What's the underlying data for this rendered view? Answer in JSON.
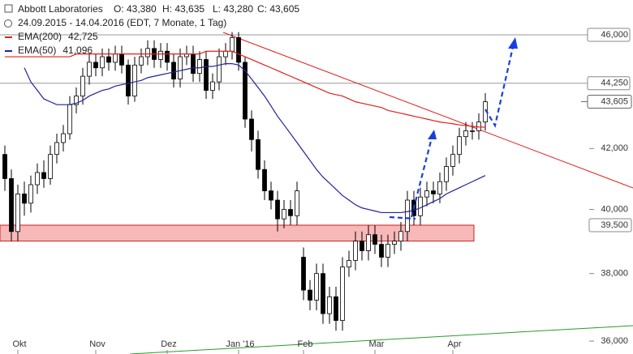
{
  "chart_data": {
    "type": "candlestick",
    "title": "Abbott Laboratories",
    "ohlc": [
      "O: 43,380",
      "H: 43,635",
      "L: 43,280",
      "C: 43,605"
    ],
    "subtitle": "24.09.2015 - 14.04.2016 (EDT, 7 Monate, 1 Tag)",
    "log": true,
    "ylim": [
      35.63,
      47.3
    ],
    "yticks": [
      {
        "value": 36,
        "label": "36,000"
      },
      {
        "value": 38,
        "label": "38,000"
      },
      {
        "value": 40,
        "label": "40,000"
      },
      {
        "value": 42,
        "label": "42,000"
      }
    ],
    "levels": [
      {
        "value": 46,
        "label": "46,000"
      },
      {
        "value": 44.25,
        "label": "44,250"
      },
      {
        "value": 39.5,
        "label": "39,500"
      }
    ],
    "last_price": {
      "value": 43.605,
      "label": "43,605"
    },
    "zone": [
      39.0,
      39.5
    ],
    "zone_color": "#f7b8b8",
    "up_color": "#ffffff",
    "down_color": "#000000",
    "categories": [
      null,
      null,
      "Okt",
      null,
      null,
      null,
      null,
      null,
      null,
      null,
      null,
      null,
      null,
      null,
      "Nov",
      null,
      null,
      null,
      null,
      null,
      null,
      null,
      null,
      null,
      null,
      "Dez",
      null,
      null,
      null,
      null,
      null,
      null,
      null,
      null,
      null,
      null,
      "Jan '16",
      null,
      null,
      null,
      null,
      null,
      null,
      null,
      null,
      null,
      "Feb",
      null,
      null,
      null,
      null,
      null,
      null,
      null,
      null,
      null,
      null,
      "Mar",
      null,
      null,
      null,
      null,
      null,
      null,
      null,
      null,
      null,
      null,
      null,
      "Apr",
      null,
      null,
      null,
      null,
      null
    ],
    "candles": {
      "open": [
        41.8,
        41.0,
        39.3,
        40.5,
        40.2,
        40.8,
        41.2,
        41.0,
        41.8,
        42.2,
        42.5,
        43.5,
        43.8,
        44.5,
        45.0,
        44.8,
        45.2,
        45.0,
        45.3,
        44.9,
        43.8,
        44.9,
        45.2,
        45.5,
        45.1,
        45.4,
        45.0,
        44.4,
        45.2,
        45.3,
        44.6,
        45.1,
        44.0,
        44.3,
        45.2,
        45.4,
        45.9,
        45.0,
        43.0,
        42.3,
        41.3,
        40.6,
        40.3,
        39.7,
        40.0,
        39.8,
        38.5,
        37.5,
        37.2,
        38.0,
        36.8,
        37.3,
        36.6,
        38.2,
        38.4,
        39.0,
        38.7,
        39.2,
        38.9,
        38.5,
        38.9,
        39.0,
        39.3,
        40.3,
        39.8,
        40.4,
        40.6,
        40.5,
        40.9,
        41.4,
        41.8,
        42.4,
        42.6,
        42.6,
        42.9
      ],
      "high": [
        42.1,
        41.3,
        40.8,
        40.9,
        41.1,
        41.5,
        41.6,
        42.1,
        42.5,
        42.8,
        43.8,
        44.1,
        44.8,
        45.3,
        45.3,
        45.5,
        45.5,
        45.6,
        45.6,
        45.1,
        45.2,
        45.5,
        45.8,
        45.8,
        45.7,
        45.7,
        45.3,
        45.5,
        45.6,
        45.6,
        45.4,
        45.4,
        44.6,
        45.5,
        45.7,
        46.1,
        46.1,
        45.2,
        43.3,
        42.6,
        41.6,
        40.9,
        40.6,
        40.3,
        40.3,
        40.9,
        38.8,
        37.8,
        38.3,
        38.3,
        37.6,
        37.6,
        38.5,
        38.7,
        39.3,
        39.3,
        39.5,
        39.5,
        39.2,
        39.2,
        39.3,
        39.6,
        40.6,
        40.6,
        40.7,
        40.9,
        40.9,
        41.2,
        41.7,
        42.1,
        42.7,
        42.9,
        42.9,
        43.2,
        43.9
      ],
      "low": [
        40.6,
        39.0,
        39.0,
        39.8,
        39.9,
        40.5,
        40.7,
        40.8,
        41.5,
        41.9,
        42.3,
        43.2,
        43.5,
        44.2,
        44.5,
        44.5,
        44.7,
        44.7,
        44.6,
        43.5,
        43.6,
        44.6,
        44.9,
        44.8,
        44.8,
        44.7,
        44.1,
        44.1,
        44.9,
        44.3,
        44.3,
        43.7,
        43.7,
        44.0,
        44.9,
        45.1,
        44.7,
        42.7,
        41.9,
        41.0,
        40.3,
        40.0,
        39.3,
        39.4,
        39.5,
        39.5,
        37.2,
        36.9,
        36.9,
        36.5,
        36.5,
        36.3,
        36.3,
        37.9,
        38.1,
        38.4,
        38.4,
        38.6,
        38.2,
        38.2,
        38.6,
        38.7,
        39.0,
        39.5,
        39.5,
        40.1,
        40.2,
        40.2,
        40.6,
        41.1,
        41.5,
        42.1,
        42.3,
        42.3,
        42.6
      ],
      "close": [
        41.0,
        39.3,
        40.5,
        40.2,
        40.8,
        41.2,
        41.0,
        41.8,
        42.2,
        42.5,
        43.5,
        43.8,
        44.5,
        45.0,
        44.8,
        45.2,
        45.0,
        45.3,
        44.9,
        43.8,
        44.9,
        45.2,
        45.5,
        45.1,
        45.4,
        45.0,
        44.4,
        45.2,
        45.3,
        44.6,
        45.1,
        44.0,
        44.3,
        45.2,
        45.4,
        45.9,
        45.0,
        43.0,
        42.3,
        41.3,
        40.6,
        40.3,
        39.7,
        40.0,
        39.8,
        40.6,
        37.5,
        37.2,
        38.0,
        36.8,
        37.3,
        36.6,
        38.2,
        38.4,
        39.0,
        38.7,
        39.2,
        38.9,
        38.5,
        38.9,
        39.0,
        39.3,
        40.3,
        39.8,
        40.4,
        40.6,
        40.5,
        40.9,
        41.4,
        41.8,
        42.4,
        42.6,
        42.6,
        42.9,
        43.6
      ]
    },
    "series": [
      {
        "name": "EMA(200)",
        "color": "#e0201b",
        "last_label": "42,725",
        "values": [
          45.2,
          45.2,
          45.2,
          45.2,
          45.2,
          45.2,
          45.2,
          45.2,
          45.2,
          45.2,
          45.2,
          45.3,
          45.3,
          45.3,
          45.3,
          45.3,
          45.3,
          45.3,
          45.3,
          45.3,
          45.3,
          45.3,
          45.3,
          45.3,
          45.3,
          45.3,
          45.3,
          45.3,
          45.3,
          45.3,
          45.3,
          45.4,
          45.4,
          45.4,
          45.4,
          45.4,
          45.3,
          45.2,
          45.1,
          45.0,
          44.9,
          44.8,
          44.7,
          44.6,
          44.5,
          44.4,
          44.3,
          44.2,
          44.1,
          44.0,
          43.9,
          43.85,
          43.8,
          43.7,
          43.6,
          43.55,
          43.5,
          43.45,
          43.4,
          43.3,
          43.25,
          43.2,
          43.15,
          43.1,
          43.05,
          43.0,
          42.95,
          42.9,
          42.87,
          42.84,
          42.8,
          42.78,
          42.75,
          42.73,
          42.72
        ]
      },
      {
        "name": "EMA(50)",
        "color": "#22229a",
        "last_label": "41,096",
        "values": [
          null,
          null,
          null,
          44.8,
          44.3,
          44.0,
          43.7,
          43.6,
          43.5,
          43.5,
          43.5,
          43.55,
          43.65,
          43.8,
          43.9,
          44.0,
          44.05,
          44.15,
          44.2,
          44.25,
          44.3,
          44.35,
          44.45,
          44.5,
          44.55,
          44.6,
          44.65,
          44.7,
          44.75,
          44.8,
          44.8,
          44.85,
          44.85,
          44.9,
          44.95,
          44.95,
          44.9,
          44.7,
          44.4,
          44.1,
          43.8,
          43.45,
          43.1,
          42.8,
          42.5,
          42.2,
          41.9,
          41.6,
          41.3,
          41.05,
          40.85,
          40.65,
          40.45,
          40.3,
          40.15,
          40.05,
          40.0,
          39.95,
          39.9,
          39.9,
          39.9,
          39.9,
          39.93,
          39.97,
          40.05,
          40.15,
          40.25,
          40.35,
          40.5,
          40.6,
          40.7,
          40.8,
          40.9,
          41.0,
          41.1
        ]
      }
    ]
  }
}
